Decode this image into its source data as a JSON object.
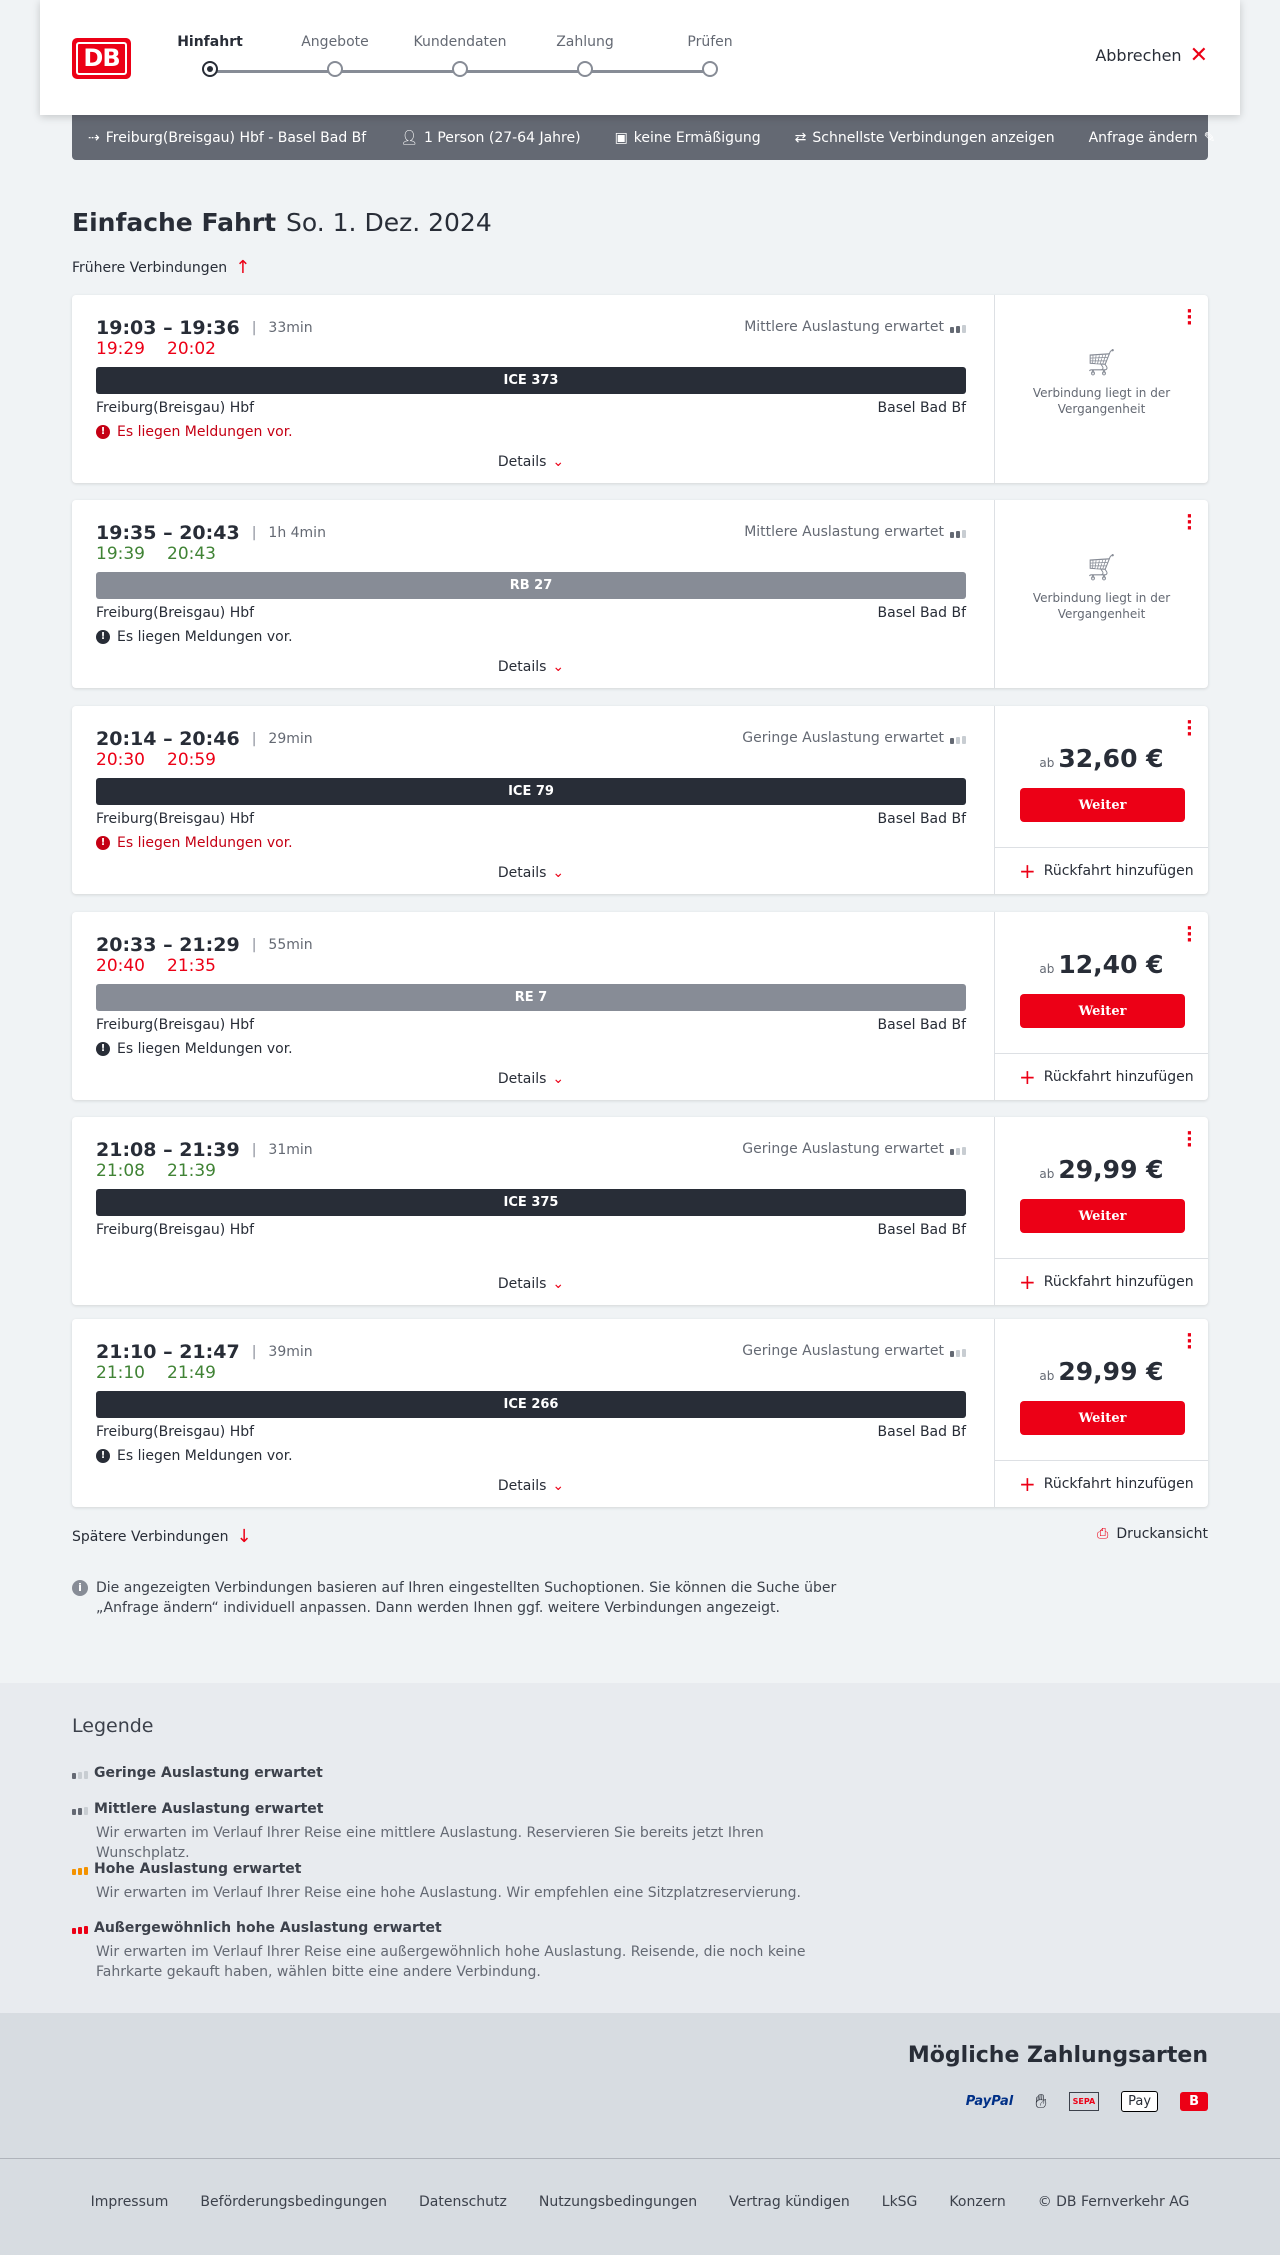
{
  "header": {
    "logo": "DB",
    "steps": [
      "Hinfahrt",
      "Angebote",
      "Kundendaten",
      "Zahlung",
      "Prüfen"
    ],
    "active_step": 0,
    "cancel": "Abbrechen"
  },
  "summary": {
    "route": "Freiburg(Breisgau) Hbf - Basel Bad Bf",
    "passengers": "1 Person (27-64 Jahre)",
    "discount": "keine Ermäßigung",
    "fastest": "Schnellste Verbindungen anzeigen",
    "edit": "Anfrage ändern"
  },
  "title": {
    "type": "Einfache Fahrt",
    "date": "So. 1. Dez. 2024"
  },
  "earlier": "Frühere Verbindungen",
  "later": "Spätere Verbindungen",
  "print": "Druckansicht",
  "details_label": "Details",
  "return_label": "Rückfahrt hinzufügen",
  "weiter_label": "Weiter",
  "ab_label": "ab",
  "past_label": "Verbindung liegt in der Vergangenheit",
  "colors": {
    "accent": "#ec0016",
    "ontime": "#408335",
    "ice": "#282d37",
    "regional": "#878c96"
  },
  "connections": [
    {
      "time": "19:03 – 19:36",
      "duration": "33min",
      "occupancy": "Mittlere Auslastung erwartet",
      "occ_level": 2,
      "rt_dep": "19:29",
      "rt_arr": "20:02",
      "late": true,
      "train": "ICE 373",
      "type": "ice",
      "from": "Freiburg(Breisgau) Hbf",
      "to": "Basel Bad Bf",
      "message": "Es liegen Meldungen vor.",
      "msg_red": true,
      "past": true
    },
    {
      "time": "19:35 – 20:43",
      "duration": "1h 4min",
      "occupancy": "Mittlere Auslastung erwartet",
      "occ_level": 2,
      "rt_dep": "19:39",
      "rt_arr": "20:43",
      "late": false,
      "train": "RB 27",
      "type": "regional",
      "from": "Freiburg(Breisgau) Hbf",
      "to": "Basel Bad Bf",
      "message": "Es liegen Meldungen vor.",
      "msg_red": false,
      "past": true
    },
    {
      "time": "20:14 – 20:46",
      "duration": "29min",
      "occupancy": "Geringe Auslastung erwartet",
      "occ_level": 1,
      "rt_dep": "20:30",
      "rt_arr": "20:59",
      "late": true,
      "train": "ICE 79",
      "type": "ice",
      "from": "Freiburg(Breisgau) Hbf",
      "to": "Basel Bad Bf",
      "message": "Es liegen Meldungen vor.",
      "msg_red": true,
      "price": "32,60 €"
    },
    {
      "time": "20:33 – 21:29",
      "duration": "55min",
      "occupancy": "",
      "occ_level": 0,
      "rt_dep": "20:40",
      "rt_arr": "21:35",
      "late": true,
      "train": "RE 7",
      "type": "regional",
      "from": "Freiburg(Breisgau) Hbf",
      "to": "Basel Bad Bf",
      "message": "Es liegen Meldungen vor.",
      "msg_red": false,
      "price": "12,40 €"
    },
    {
      "time": "21:08 – 21:39",
      "duration": "31min",
      "occupancy": "Geringe Auslastung erwartet",
      "occ_level": 1,
      "rt_dep": "21:08",
      "rt_arr": "21:39",
      "late": false,
      "train": "ICE 375",
      "type": "ice",
      "from": "Freiburg(Breisgau) Hbf",
      "to": "Basel Bad Bf",
      "message": "",
      "price": "29,99 €"
    },
    {
      "time": "21:10 – 21:47",
      "duration": "39min",
      "occupancy": "Geringe Auslastung erwartet",
      "occ_level": 1,
      "rt_dep": "21:10",
      "rt_arr": "21:49",
      "late": false,
      "train": "ICE 266",
      "type": "ice",
      "from": "Freiburg(Breisgau) Hbf",
      "to": "Basel Bad Bf",
      "message": "Es liegen Meldungen vor.",
      "msg_red": false,
      "price": "29,99 €"
    }
  ],
  "info": "Die angezeigten Verbindungen basieren auf Ihren eingestellten Suchoptionen. Sie können die Suche über „Anfrage ändern“ individuell anpassen. Dann werden Ihnen ggf. weitere Verbindungen angezeigt.",
  "legend": {
    "title": "Legende",
    "items": [
      {
        "title": "Geringe Auslastung erwartet",
        "text": "",
        "level": 1,
        "color": "#646973"
      },
      {
        "title": "Mittlere Auslastung erwartet",
        "text": "Wir erwarten im Verlauf Ihrer Reise eine mittlere Auslastung. Reservieren Sie bereits jetzt Ihren Wunschplatz.",
        "level": 2,
        "color": "#646973"
      },
      {
        "title": "Hohe Auslastung erwartet",
        "text": "Wir erwarten im Verlauf Ihrer Reise eine hohe Auslastung. Wir empfehlen eine Sitzplatzreservierung.",
        "level": 3,
        "color": "#f39200"
      },
      {
        "title": "Außergewöhnlich hohe Auslastung erwartet",
        "text": "Wir erwarten im Verlauf Ihrer Reise eine außergewöhnlich hohe Auslastung. Reisende, die noch keine Fahrkarte gekauft haben, wählen bitte eine andere Verbindung.",
        "level": 4,
        "color": "#ec0016"
      }
    ]
  },
  "payment": {
    "title": "Mögliche Zahlungsarten",
    "methods": [
      "PayPal",
      "Kreditkarte",
      "SEPA",
      "Apple Pay",
      "DB Bonus"
    ]
  },
  "footer": [
    "Impressum",
    "Beförderungsbedingungen",
    "Datenschutz",
    "Nutzungsbedingungen",
    "Vertrag kündigen",
    "LkSG",
    "Konzern",
    "© DB Fernverkehr AG"
  ]
}
